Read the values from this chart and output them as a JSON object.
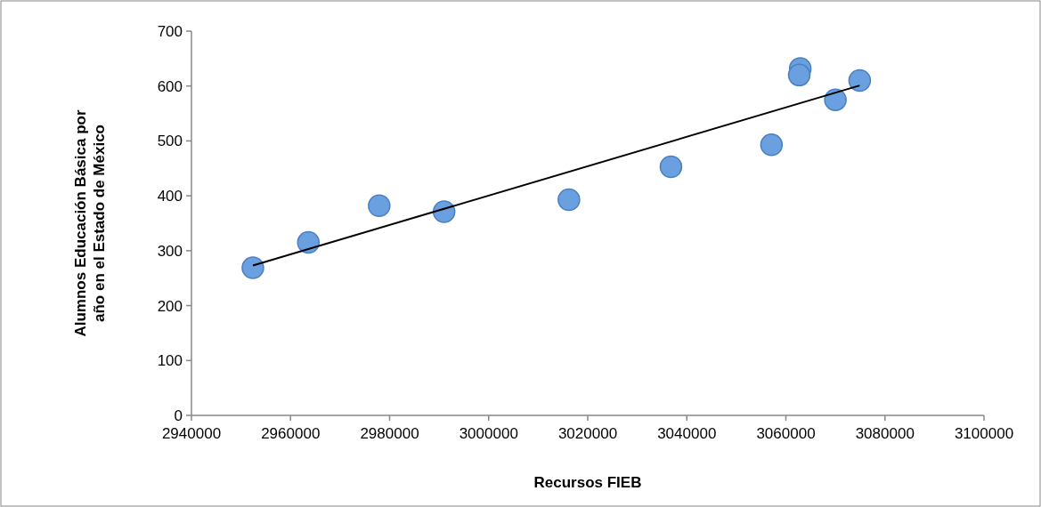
{
  "chart_data": {
    "type": "scatter",
    "xlabel": "Recursos FIEB",
    "ylabel": "Alumnos Educación Básica por\naño en el Estado de México",
    "xlim": [
      2940000,
      3100000
    ],
    "xticks": [
      2940000,
      2960000,
      2980000,
      3000000,
      3020000,
      3040000,
      3060000,
      3080000,
      3100000
    ],
    "ylim": [
      0,
      700
    ],
    "yticks": [
      0,
      100,
      200,
      300,
      400,
      500,
      600,
      700
    ],
    "grid": false,
    "marker": "circle",
    "series": [
      {
        "color": "#6a9fe0",
        "x": [
          2952400,
          2963600,
          2977900,
          2991000,
          3016200,
          3036800,
          3057100,
          3062900,
          3062700,
          3070000,
          3074900
        ],
        "values": [
          269,
          315,
          382,
          371,
          393,
          453,
          493,
          632,
          620,
          575,
          610
        ]
      },
      {
        "type": "line",
        "marker": "none",
        "color": "#000000",
        "x": [
          2952400,
          3074900
        ],
        "values": [
          273,
          601
        ]
      }
    ]
  }
}
